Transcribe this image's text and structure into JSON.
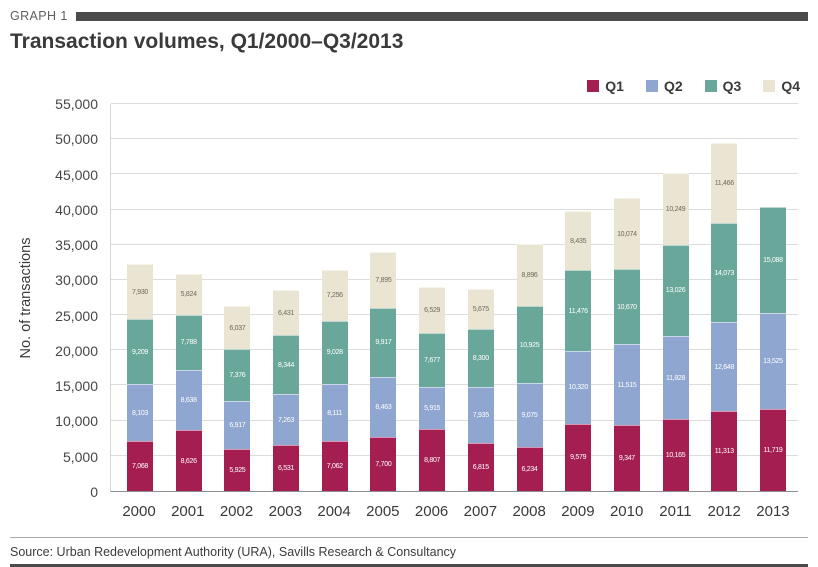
{
  "header": {
    "graph_label": "GRAPH 1",
    "title": "Transaction volumes, Q1/2000–Q3/2013"
  },
  "footer": {
    "source": "Source: Urban Redevelopment Authority (URA), Savills Research & Consultancy"
  },
  "colors": {
    "q1": "#a41e52",
    "q2": "#8fa6d0",
    "q3": "#6aa79b",
    "q4": "#eae4d3",
    "header_bar": "#4b4b4b"
  },
  "chart_data": {
    "type": "bar",
    "stacked": true,
    "title": "Transaction volumes, Q1/2000–Q3/2013",
    "xlabel": "",
    "ylabel": "No. of transactions",
    "ylim": [
      0,
      55000
    ],
    "ytick_step": 5000,
    "grid": true,
    "legend_position": "top-right",
    "categories": [
      "2000",
      "2001",
      "2002",
      "2003",
      "2004",
      "2005",
      "2006",
      "2007",
      "2008",
      "2009",
      "2010",
      "2011",
      "2012",
      "2013"
    ],
    "series": [
      {
        "name": "Q1",
        "color": "#a41e52",
        "label_color": "#ffffff",
        "values": [
          7068,
          8626,
          5925,
          6531,
          7062,
          7700,
          8807,
          6815,
          6234,
          9579,
          9347,
          10165,
          11313,
          11719
        ]
      },
      {
        "name": "Q2",
        "color": "#8fa6d0",
        "label_color": "#ffffff",
        "values": [
          8103,
          8638,
          6917,
          7263,
          8111,
          8463,
          5915,
          7935,
          9075,
          10320,
          11515,
          11828,
          12648,
          13525
        ]
      },
      {
        "name": "Q3",
        "color": "#6aa79b",
        "label_color": "#ffffff",
        "values": [
          9209,
          7788,
          7376,
          8344,
          9028,
          9917,
          7677,
          8300,
          10925,
          11476,
          10670,
          13026,
          14073,
          15088
        ]
      },
      {
        "name": "Q4",
        "color": "#eae4d3",
        "label_color": "#6f6a5c",
        "values": [
          7930,
          5824,
          6037,
          6431,
          7256,
          7895,
          6529,
          5675,
          8896,
          8435,
          10074,
          10249,
          11466,
          null
        ]
      }
    ]
  }
}
